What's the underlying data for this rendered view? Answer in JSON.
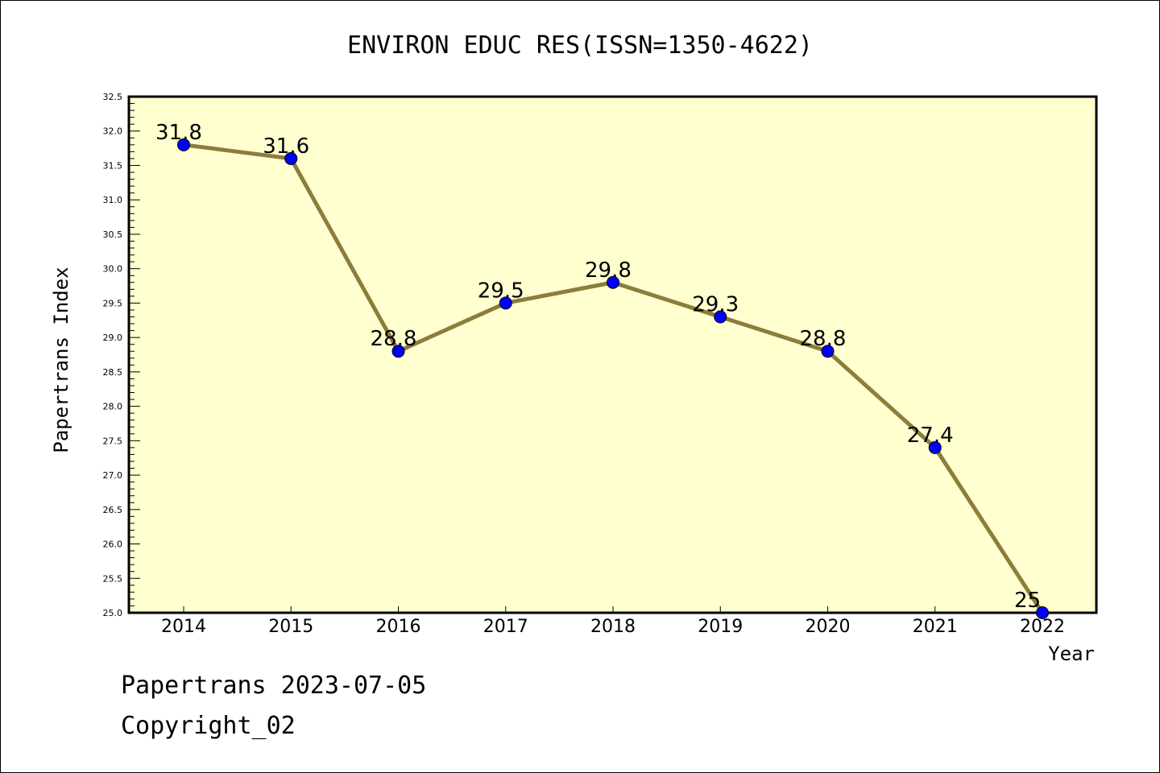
{
  "chart_data": {
    "type": "line",
    "title": "ENVIRON EDUC RES(ISSN=1350-4622)",
    "xlabel": "Year",
    "ylabel": "Papertrans Index",
    "categories": [
      "2014",
      "2015",
      "2016",
      "2017",
      "2018",
      "2019",
      "2020",
      "2021",
      "2022"
    ],
    "values": [
      31.8,
      31.6,
      28.8,
      29.5,
      29.8,
      29.3,
      28.8,
      27.4,
      25.0
    ],
    "data_labels": [
      "31.8",
      "31.6",
      "28.8",
      "29.5",
      "29.8",
      "29.3",
      "28.8",
      "27.4",
      "25"
    ],
    "y_ticks": [
      "25.0",
      "25.5",
      "26.0",
      "26.5",
      "27.0",
      "27.5",
      "28.0",
      "28.5",
      "29.0",
      "29.5",
      "30.0",
      "30.5",
      "31.0",
      "31.5",
      "32.0",
      "32.5"
    ],
    "ylim": [
      25.0,
      32.5
    ],
    "minor_tick_step": 0.1,
    "grid": false,
    "legend": "none",
    "colors": {
      "plot_background": "#ffffd0",
      "line": "#8b7d3a",
      "marker": "#0000ff"
    }
  },
  "footer": {
    "line1": "Papertrans 2023-07-05",
    "line2": "Copyright_02"
  }
}
